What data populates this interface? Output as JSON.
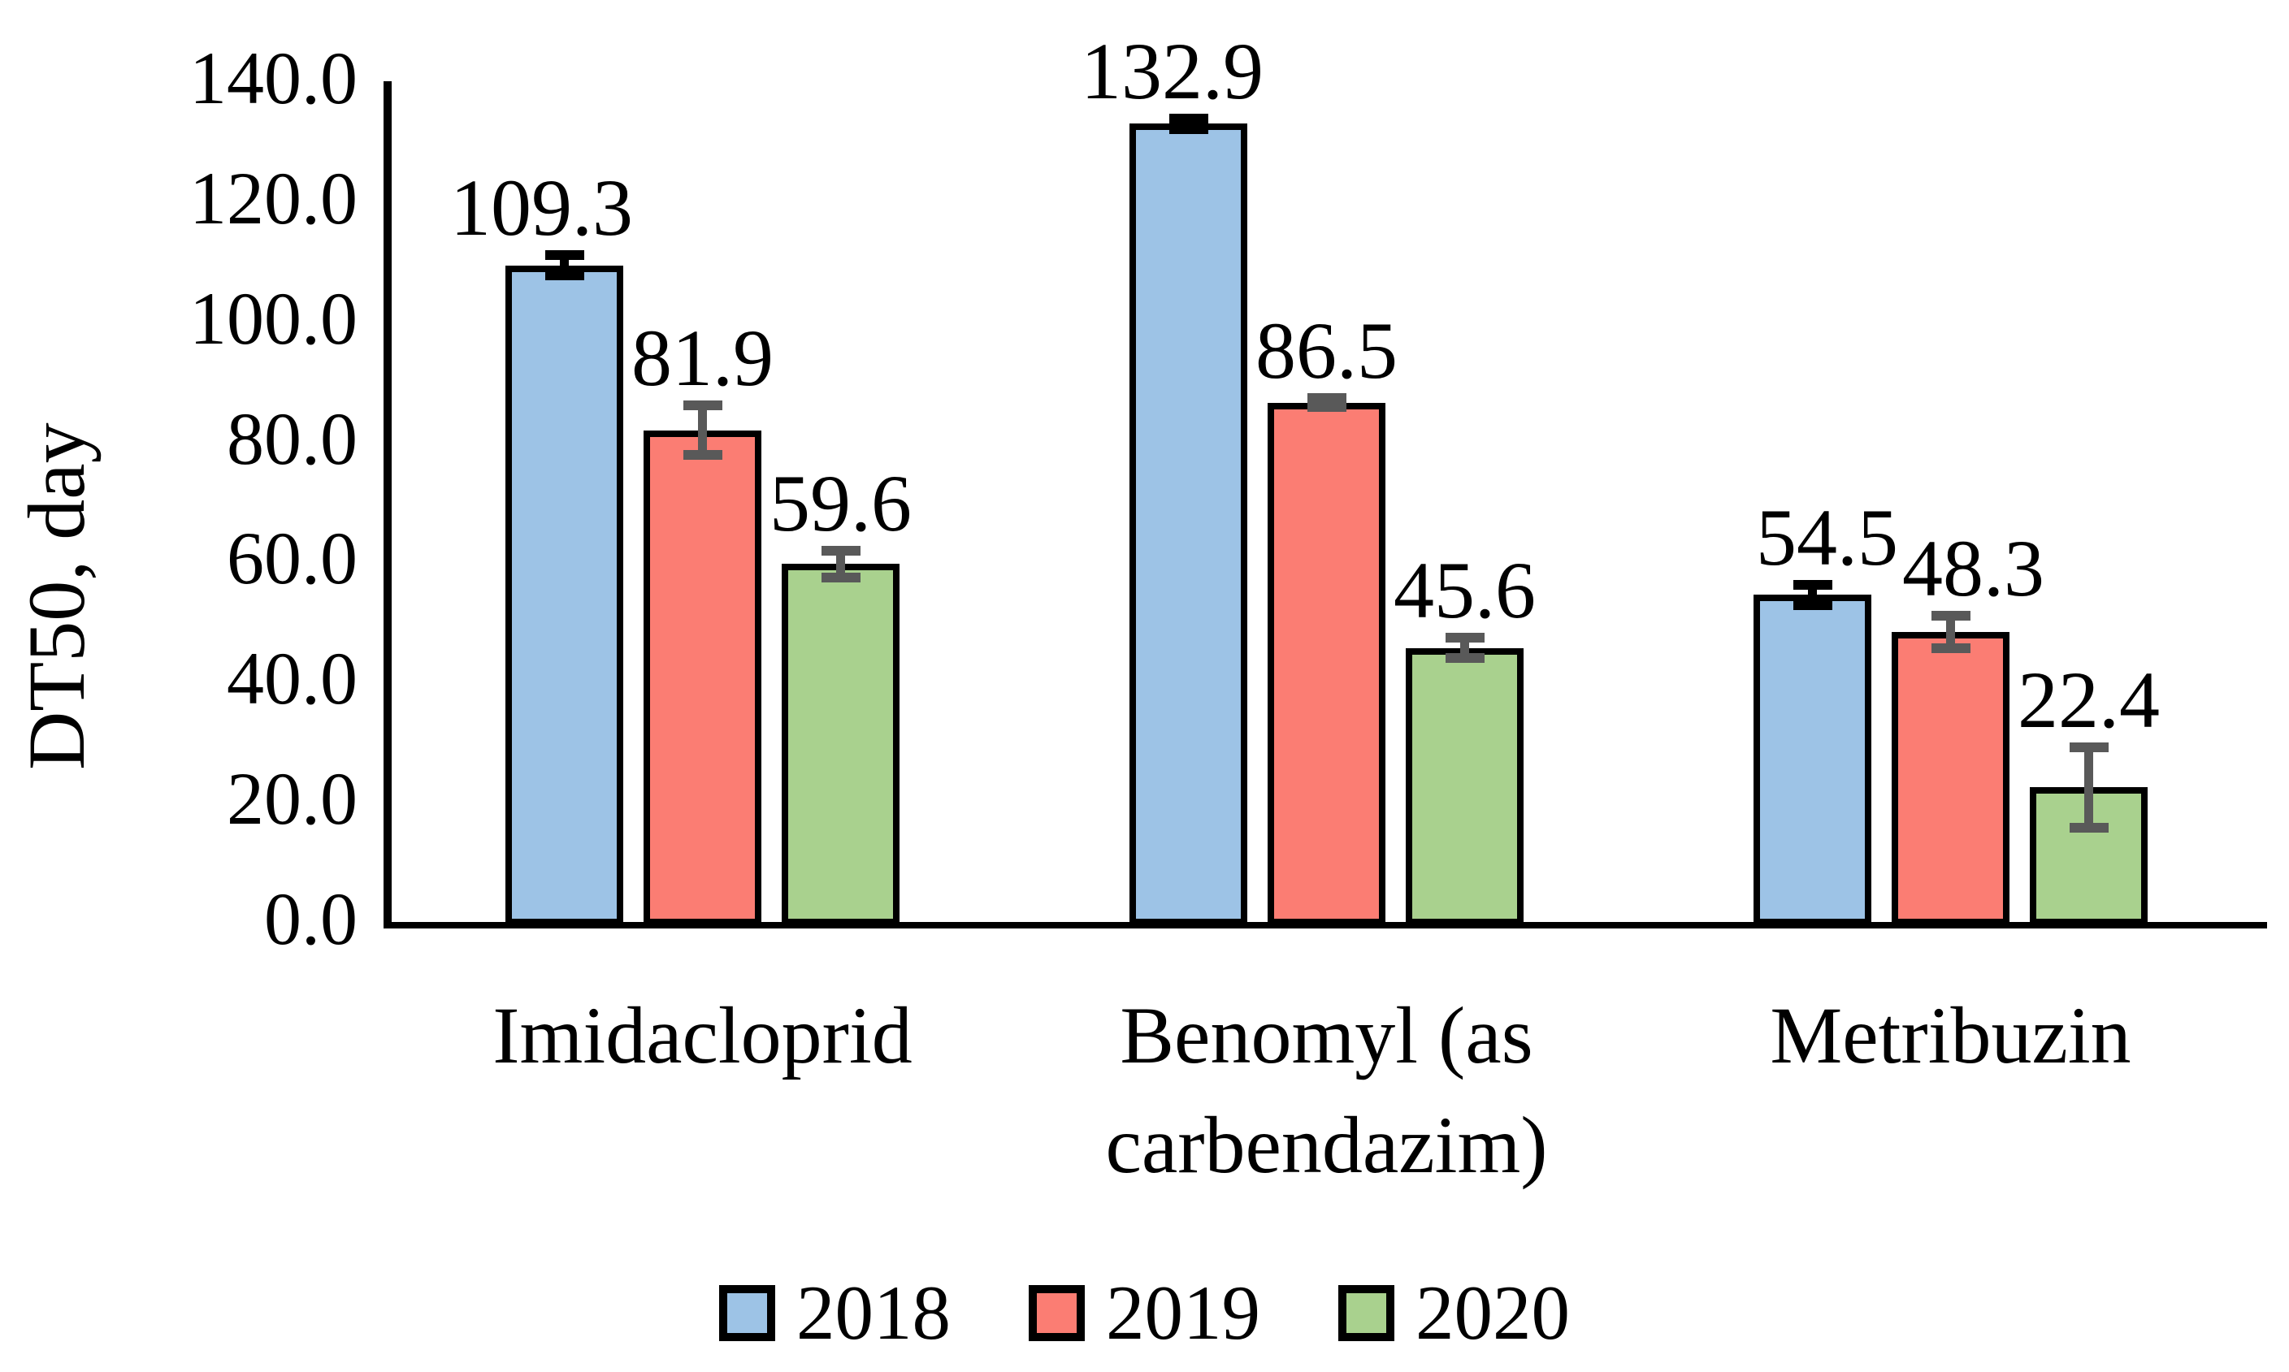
{
  "chart_data": {
    "type": "bar",
    "title": "",
    "ylabel": "DT50, day",
    "xlabel": "",
    "ylim": [
      0,
      140
    ],
    "grid": false,
    "yticks": [
      {
        "label": "140.0",
        "value": 140
      },
      {
        "label": "120.0",
        "value": 120
      },
      {
        "label": "100.0",
        "value": 100
      },
      {
        "label": "80.0",
        "value": 80
      },
      {
        "label": "60.0",
        "value": 60
      },
      {
        "label": "40.0",
        "value": 40
      },
      {
        "label": "20.0",
        "value": 20
      },
      {
        "label": "0.0",
        "value": 0
      }
    ],
    "categories": [
      {
        "id": "imidacloprid",
        "lines": [
          "Imidacloprid"
        ]
      },
      {
        "id": "benomyl",
        "lines": [
          "Benomyl (as",
          "carbendazim)"
        ]
      },
      {
        "id": "metribuzin",
        "lines": [
          "Metribuzin"
        ]
      }
    ],
    "series": [
      {
        "name": "2018",
        "color": "#9DC3E6",
        "error_color": "#000000",
        "values": [
          109.3,
          132.9,
          54.5
        ],
        "value_labels": [
          "109.3",
          "132.9",
          "54.5"
        ],
        "errors": [
          2.5,
          1.7,
          2.5
        ]
      },
      {
        "name": "2019",
        "color": "#FB7D73",
        "error_color": "#595959",
        "values": [
          81.9,
          86.5,
          48.3
        ],
        "value_labels": [
          "81.9",
          "86.5",
          "48.3"
        ],
        "errors": [
          5.0,
          1.5,
          3.5
        ]
      },
      {
        "name": "2020",
        "color": "#A9D18E",
        "error_color": "#595959",
        "values": [
          59.6,
          45.6,
          22.4
        ],
        "value_labels": [
          "59.6",
          "45.6",
          "22.4"
        ],
        "errors": [
          3.0,
          2.5,
          7.5
        ]
      }
    ],
    "legend": {
      "position": "bottom",
      "entries": [
        "2018",
        "2019",
        "2020"
      ]
    },
    "axis_color": "#000000",
    "background": "#FFFFFF"
  }
}
